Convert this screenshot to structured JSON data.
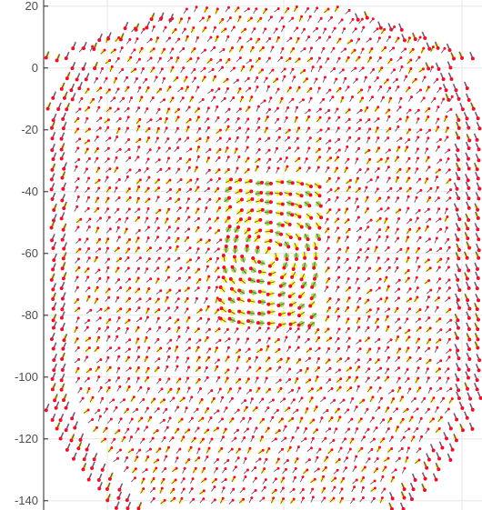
{
  "chart_data": {
    "type": "scatter",
    "title": "",
    "xlabel": "",
    "ylabel": "",
    "ylim": [
      -143,
      22
    ],
    "yticks": [
      20,
      0,
      -20,
      -40,
      -60,
      -80,
      -100,
      -120,
      -140
    ],
    "grid": true,
    "legend": "none",
    "colors": {
      "vector": "#6f5a7a",
      "head": "#e8132a",
      "halo": "#ffff00",
      "interior_tint": "#7fd10c",
      "grid": "#e6e6e6",
      "axis": "#262626"
    },
    "series": [
      {
        "marker": "quiver",
        "description_of_field": "dense grid of short arrows over a head-shaped region with a central rectangular vortex",
        "x_range": [
          -1.0,
          1.0
        ],
        "y_range": [
          -143,
          20
        ]
      }
    ]
  }
}
